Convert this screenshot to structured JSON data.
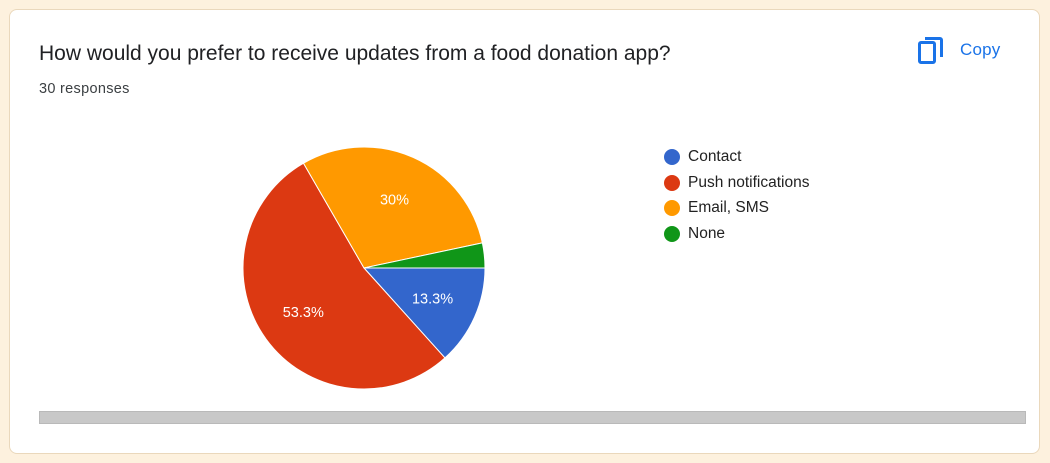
{
  "card": {
    "title": "How would you prefer to receive updates from a food donation app?",
    "responses": "30 responses",
    "copy_label": "Copy",
    "copy_icon": "copy-icon"
  },
  "colors": {
    "page_background": "#fdf1de",
    "copy_accent": "#1a73e8",
    "scrollbar": "#c8c8c8"
  },
  "chart_data": {
    "type": "pie",
    "total_responses": 30,
    "start_angle_deg": 90,
    "direction": "clockwise",
    "legend_position": "right",
    "slices": [
      {
        "name": "Contact",
        "value": 4,
        "percent_label": "13.3%",
        "color": "#3366cc"
      },
      {
        "name": "Push notifications",
        "value": 16,
        "percent_label": "53.3%",
        "color": "#dc3912"
      },
      {
        "name": "Email, SMS",
        "value": 9,
        "percent_label": "30%",
        "color": "#ff9900"
      },
      {
        "name": "None",
        "value": 1,
        "percent_label": "",
        "color": "#109618"
      }
    ]
  }
}
